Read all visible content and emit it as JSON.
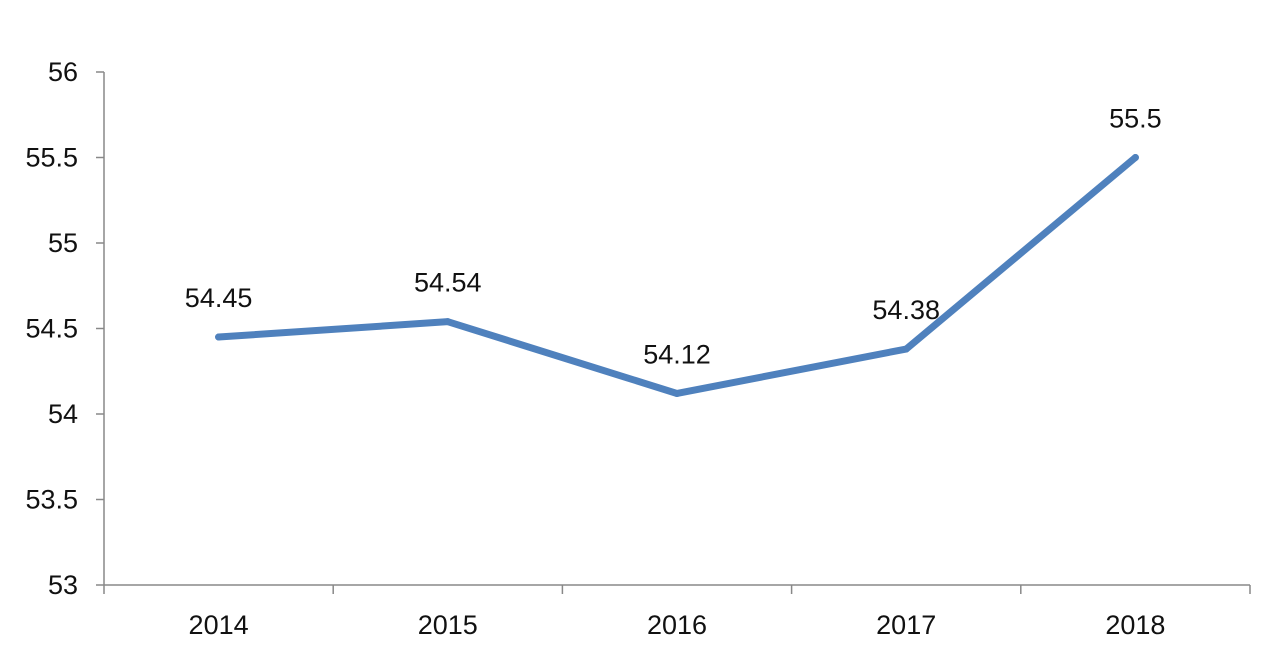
{
  "chart_data": {
    "type": "line",
    "categories": [
      "2014",
      "2015",
      "2016",
      "2017",
      "2018"
    ],
    "series": [
      {
        "values": [
          54.45,
          54.54,
          54.12,
          54.38,
          55.5
        ],
        "color": "#4f81bd"
      }
    ],
    "data_labels": [
      "54.45",
      "54.54",
      "54.12",
      "54.38",
      "55.5"
    ],
    "y_ticks": [
      "53",
      "53.5",
      "54",
      "54.5",
      "55",
      "55.5",
      "56"
    ],
    "ylim": [
      53,
      56
    ],
    "title": "",
    "xlabel": "",
    "ylabel": "",
    "grid": false,
    "legend": "none",
    "axis_color": "#888888"
  }
}
